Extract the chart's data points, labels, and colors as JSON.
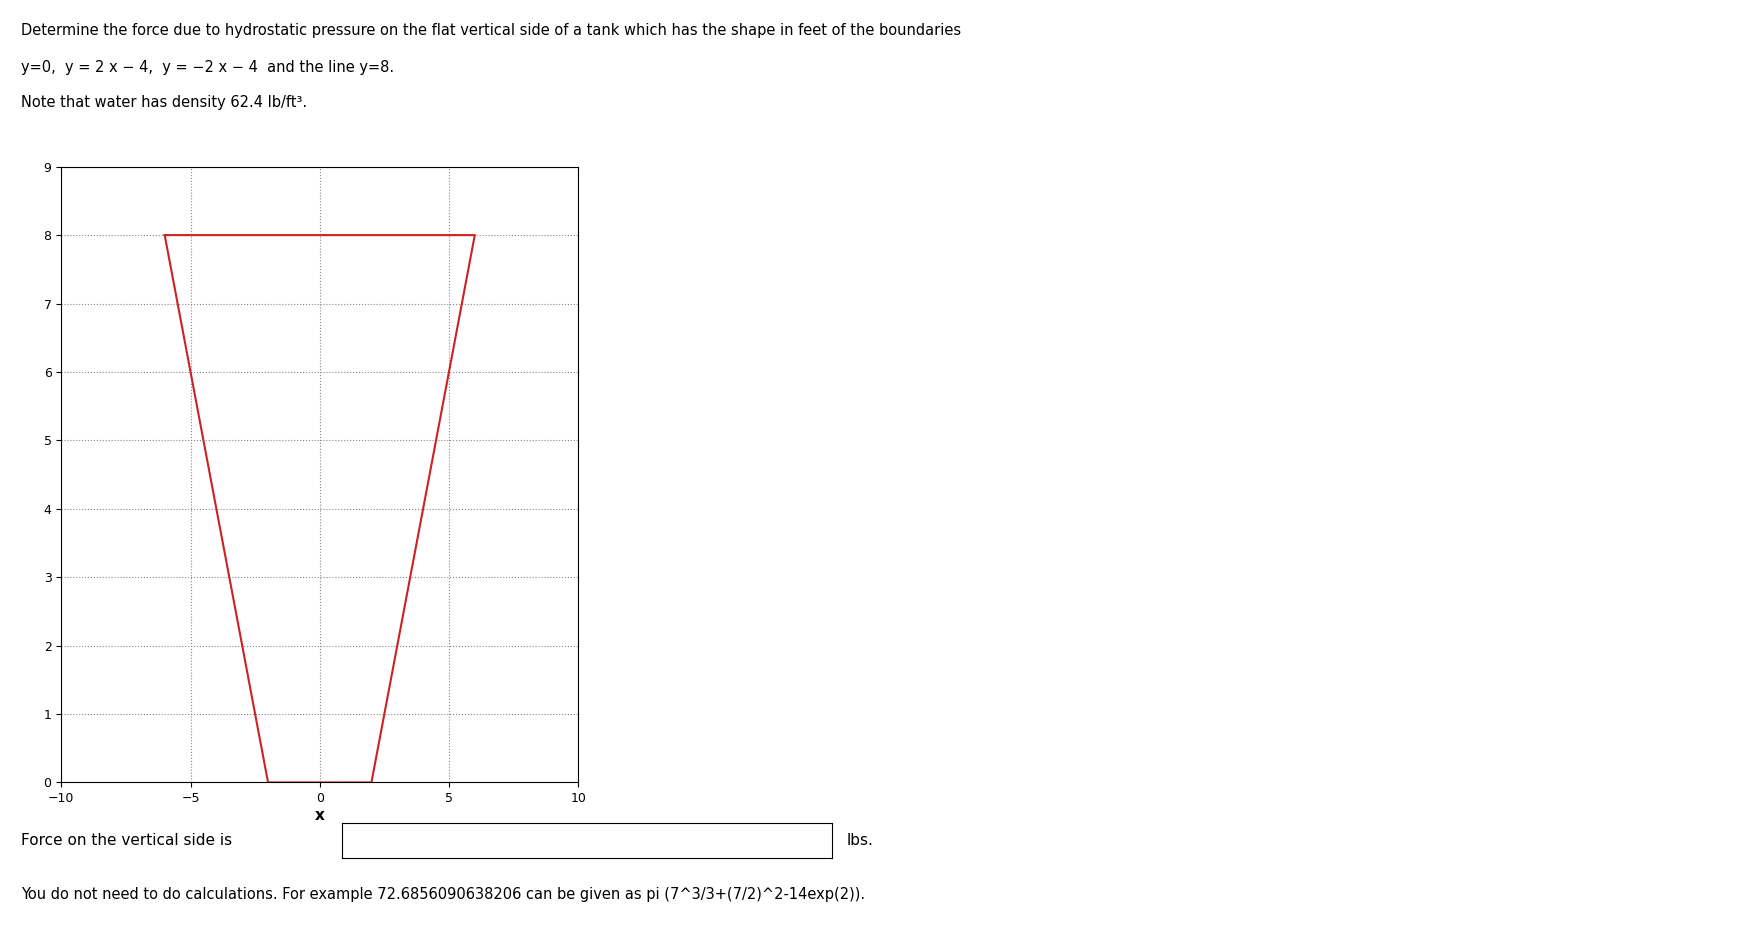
{
  "title_line1": "Determine the force due to hydrostatic pressure on the flat vertical side of a tank which has the shape in feet of the boundaries",
  "title_line2": "y=0,  y = 2 x − 4,  y = −2 x − 4  and the line y=8.",
  "title_line3": "Note that water has density 62.4 lb/ft³.",
  "xlabel": "x",
  "xlim": [
    -10,
    10
  ],
  "ylim": [
    0,
    9
  ],
  "xticks": [
    -10,
    -5,
    0,
    5,
    10
  ],
  "yticks": [
    0,
    1,
    2,
    3,
    4,
    5,
    6,
    7,
    8,
    9
  ],
  "shape_color": "#cc2222",
  "shape_x": [
    -6,
    -2,
    2,
    6,
    -6
  ],
  "shape_y": [
    8,
    0,
    0,
    8,
    8
  ],
  "grid_color": "#888888",
  "bg_color": "#ffffff",
  "force_label": "Force on the vertical side is",
  "force_units": "lbs.",
  "bottom_note": "You do not need to do calculations. For example 72.6856090638206 can be given as pi (7^3/3+(7/2)^2-14exp(2)).",
  "text_color": "#000000",
  "title_color": "#000000"
}
